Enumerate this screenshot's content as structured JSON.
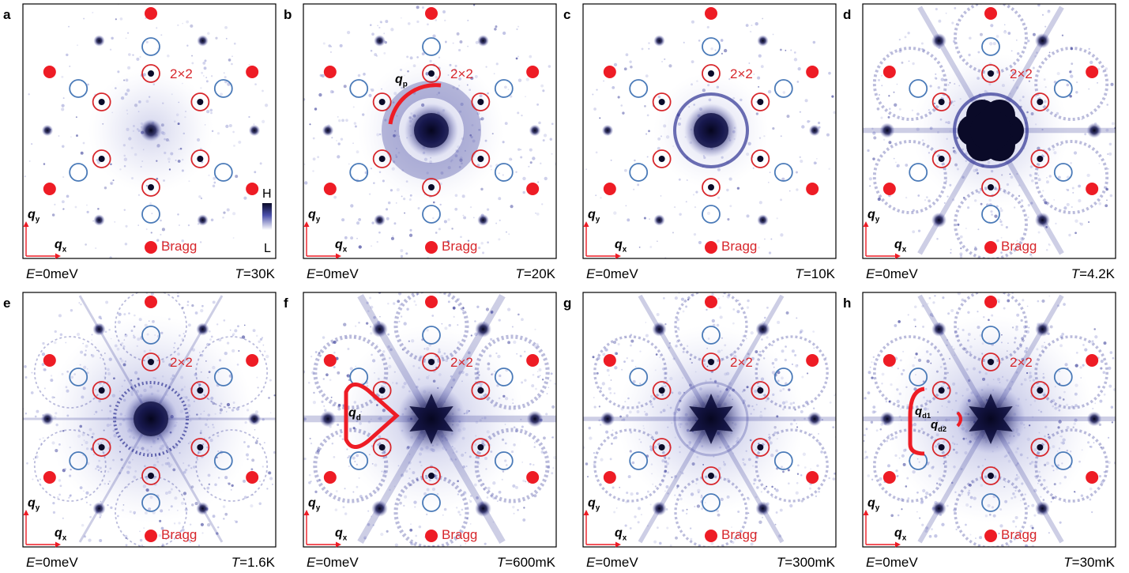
{
  "figure": {
    "panels": [
      {
        "letter": "a",
        "energy": "E=0meV",
        "temperature": "T=30K",
        "label_2x2": "2×2",
        "bragg": "Bragg",
        "annotation": "colorbar",
        "ring": "none",
        "center": "small",
        "diffuse": 0.15,
        "web": 0.05
      },
      {
        "letter": "b",
        "energy": "E=0meV",
        "temperature": "T=20K",
        "label_2x2": "2×2",
        "bragg": "Bragg",
        "annotation": "qp",
        "ring": "glow",
        "center": "blob",
        "diffuse": 0.25,
        "web": 0.08
      },
      {
        "letter": "c",
        "energy": "E=0meV",
        "temperature": "T=10K",
        "label_2x2": "2×2",
        "bragg": "Bragg",
        "annotation": "none",
        "ring": "sharp",
        "center": "blob",
        "diffuse": 0.1,
        "web": 0.05
      },
      {
        "letter": "d",
        "energy": "E=0meV",
        "temperature": "T=4.2K",
        "label_2x2": "2×2",
        "bragg": "Bragg",
        "annotation": "none",
        "ring": "sharp",
        "center": "flower",
        "diffuse": 0.3,
        "web": 0.65
      },
      {
        "letter": "e",
        "energy": "E=0meV",
        "temperature": "T=1.6K",
        "label_2x2": "2×2",
        "bragg": "Bragg",
        "annotation": "none",
        "ring": "dotted",
        "center": "blob",
        "diffuse": 0.55,
        "web": 0.3
      },
      {
        "letter": "f",
        "energy": "E=0meV",
        "temperature": "T=600mK",
        "label_2x2": "2×2",
        "bragg": "Bragg",
        "annotation": "qd",
        "ring": "none",
        "center": "star",
        "diffuse": 0.45,
        "web": 0.85
      },
      {
        "letter": "g",
        "energy": "E=0meV",
        "temperature": "T=300mK",
        "label_2x2": "2×2",
        "bragg": "Bragg",
        "annotation": "none",
        "ring": "faint",
        "center": "star",
        "diffuse": 0.45,
        "web": 0.55
      },
      {
        "letter": "h",
        "energy": "E=0meV",
        "temperature": "T=30mK",
        "label_2x2": "2×2",
        "bragg": "Bragg",
        "annotation": "qd12",
        "ring": "none",
        "center": "star",
        "diffuse": 0.55,
        "web": 0.6
      }
    ],
    "axes": {
      "qx": "q",
      "qx_sub": "x",
      "qy": "q",
      "qy_sub": "y"
    },
    "colorbar": {
      "high": "H",
      "low": "L"
    },
    "annotations": {
      "qp": {
        "base": "q",
        "sub": "p"
      },
      "qd": {
        "base": "q",
        "sub": "d"
      },
      "qd1": {
        "base": "q",
        "sub": "d1"
      },
      "qd2": {
        "base": "q",
        "sub": "d2"
      }
    },
    "colors": {
      "bragg_red": "#ee1c25",
      "circle_red": "#d7262b",
      "circle_blue": "#4a7ab8",
      "intensity_dark": "#0a0a28",
      "intensity_mid": "#3b3f9a",
      "intensity_light": "#a9acdb",
      "frame": "#000000"
    },
    "marker_legend": {
      "red_circle": "2×2",
      "blue_circle": "hollow",
      "filled_red": "Bragg"
    }
  }
}
